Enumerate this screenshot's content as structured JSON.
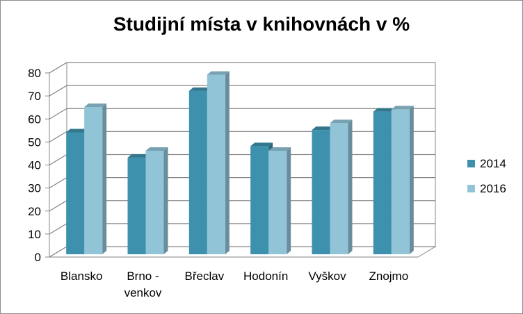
{
  "chart_data": {
    "type": "bar",
    "title": "Studijní místa v knihovnách v %",
    "categories": [
      "Blansko",
      "Brno - venkov",
      "Břeclav",
      "Hodonín",
      "Vyškov",
      "Znojmo"
    ],
    "category_lines": [
      [
        "Blansko"
      ],
      [
        "Brno -",
        "venkov"
      ],
      [
        "Břeclav"
      ],
      [
        "Hodonín"
      ],
      [
        "Vyškov"
      ],
      [
        "Znojmo"
      ]
    ],
    "series": [
      {
        "name": "2014",
        "values": [
          53,
          42,
          71,
          47,
          54,
          62
        ],
        "color": "#3d91ac"
      },
      {
        "name": "2016",
        "values": [
          64,
          45,
          78,
          45,
          57,
          63
        ],
        "color": "#92c4d8"
      }
    ],
    "ylim": [
      0,
      80
    ],
    "yticks": [
      0,
      10,
      20,
      30,
      40,
      50,
      60,
      70,
      80
    ],
    "grid": true,
    "legend": "right",
    "xlabel": "",
    "ylabel": ""
  }
}
